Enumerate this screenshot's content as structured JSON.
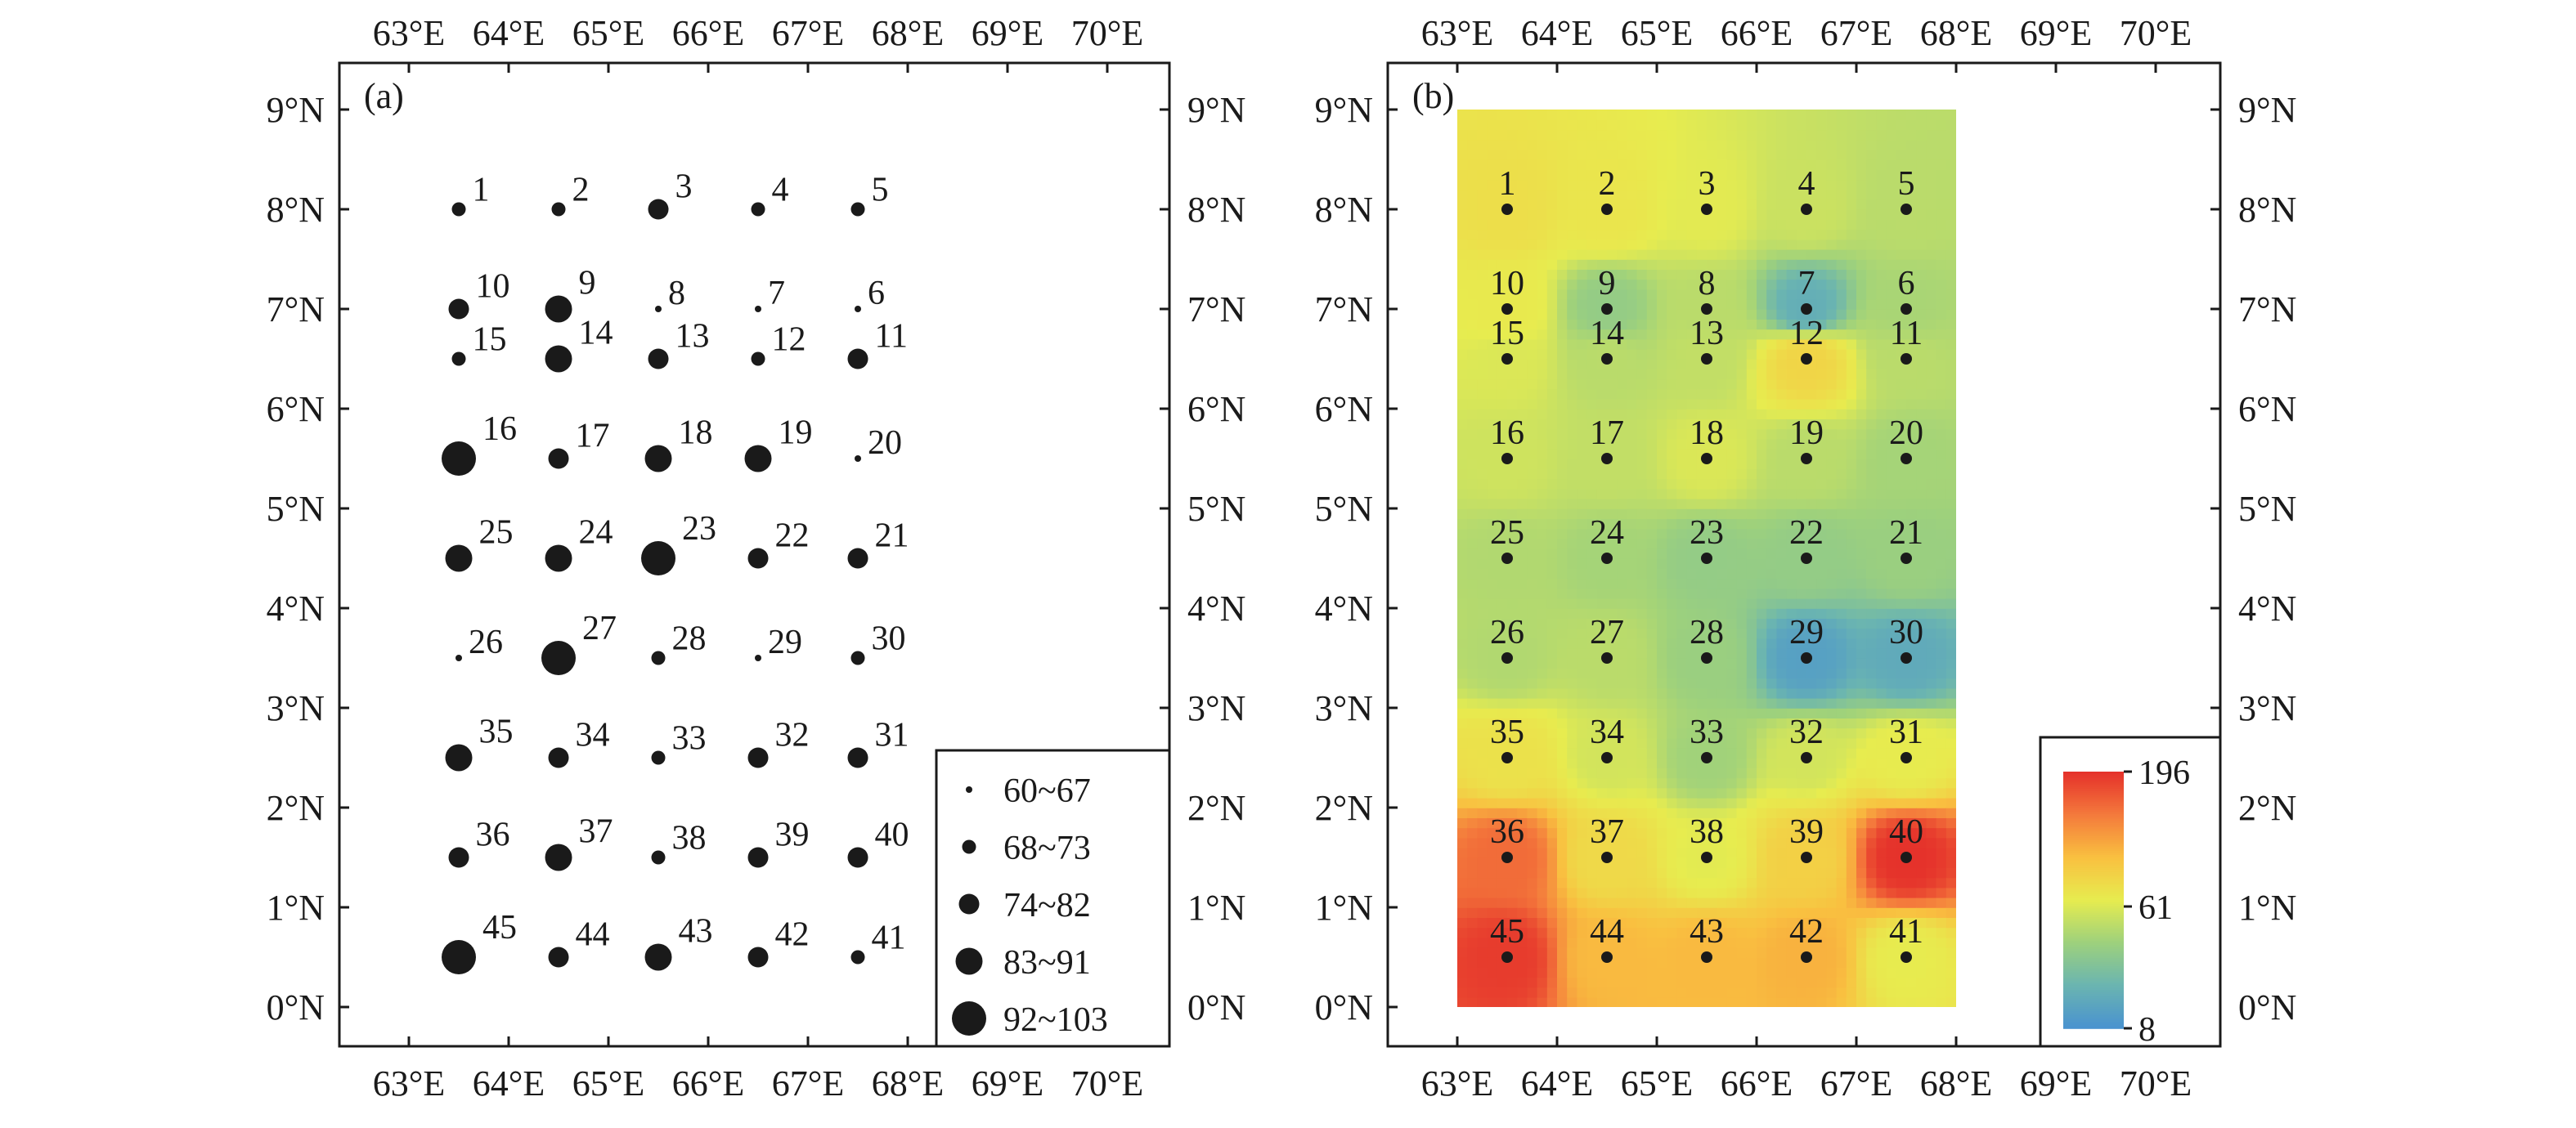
{
  "chart_data": [
    {
      "type": "scatter",
      "panel_label": "(a)",
      "subtype": "proportional-symbol map",
      "xlim": [
        62,
        70.5
      ],
      "ylim": [
        -0.8,
        9.5
      ],
      "x_ticks": [
        "63°E",
        "64°E",
        "65°E",
        "66°E",
        "67°E",
        "68°E",
        "69°E",
        "70°E"
      ],
      "y_ticks": [
        "0°N",
        "1°N",
        "2°N",
        "3°N",
        "4°N",
        "5°N",
        "6°N",
        "7°N",
        "8°N",
        "9°N"
      ],
      "legend_position": "bottom-right",
      "legend": [
        {
          "label": "60~67",
          "class": 0
        },
        {
          "label": "68~73",
          "class": 1
        },
        {
          "label": "74~82",
          "class": 2
        },
        {
          "label": "83~91",
          "class": 3
        },
        {
          "label": "92~103",
          "class": 4
        }
      ],
      "points": [
        {
          "id": "1",
          "lon": 63.5,
          "lat": 8.0,
          "class": 1
        },
        {
          "id": "2",
          "lon": 64.5,
          "lat": 8.0,
          "class": 1
        },
        {
          "id": "3",
          "lon": 65.5,
          "lat": 8.0,
          "class": 2
        },
        {
          "id": "4",
          "lon": 66.5,
          "lat": 8.0,
          "class": 1
        },
        {
          "id": "5",
          "lon": 67.5,
          "lat": 8.0,
          "class": 1
        },
        {
          "id": "10",
          "lon": 63.5,
          "lat": 7.0,
          "class": 2
        },
        {
          "id": "9",
          "lon": 64.5,
          "lat": 7.0,
          "class": 3
        },
        {
          "id": "8",
          "lon": 65.5,
          "lat": 7.0,
          "class": 0
        },
        {
          "id": "7",
          "lon": 66.5,
          "lat": 7.0,
          "class": 0
        },
        {
          "id": "6",
          "lon": 67.5,
          "lat": 7.0,
          "class": 0
        },
        {
          "id": "15",
          "lon": 63.5,
          "lat": 6.5,
          "class": 1
        },
        {
          "id": "14",
          "lon": 64.5,
          "lat": 6.5,
          "class": 3
        },
        {
          "id": "13",
          "lon": 65.5,
          "lat": 6.5,
          "class": 2
        },
        {
          "id": "12",
          "lon": 66.5,
          "lat": 6.5,
          "class": 1
        },
        {
          "id": "11",
          "lon": 67.5,
          "lat": 6.5,
          "class": 2
        },
        {
          "id": "16",
          "lon": 63.5,
          "lat": 5.5,
          "class": 4
        },
        {
          "id": "17",
          "lon": 64.5,
          "lat": 5.5,
          "class": 2
        },
        {
          "id": "18",
          "lon": 65.5,
          "lat": 5.5,
          "class": 3
        },
        {
          "id": "19",
          "lon": 66.5,
          "lat": 5.5,
          "class": 3
        },
        {
          "id": "20",
          "lon": 67.5,
          "lat": 5.5,
          "class": 0
        },
        {
          "id": "25",
          "lon": 63.5,
          "lat": 4.5,
          "class": 3
        },
        {
          "id": "24",
          "lon": 64.5,
          "lat": 4.5,
          "class": 3
        },
        {
          "id": "23",
          "lon": 65.5,
          "lat": 4.5,
          "class": 4
        },
        {
          "id": "22",
          "lon": 66.5,
          "lat": 4.5,
          "class": 2
        },
        {
          "id": "21",
          "lon": 67.5,
          "lat": 4.5,
          "class": 2
        },
        {
          "id": "26",
          "lon": 63.5,
          "lat": 3.5,
          "class": 0
        },
        {
          "id": "27",
          "lon": 64.5,
          "lat": 3.5,
          "class": 4
        },
        {
          "id": "28",
          "lon": 65.5,
          "lat": 3.5,
          "class": 1
        },
        {
          "id": "29",
          "lon": 66.5,
          "lat": 3.5,
          "class": 0
        },
        {
          "id": "30",
          "lon": 67.5,
          "lat": 3.5,
          "class": 1
        },
        {
          "id": "35",
          "lon": 63.5,
          "lat": 2.5,
          "class": 3
        },
        {
          "id": "34",
          "lon": 64.5,
          "lat": 2.5,
          "class": 2
        },
        {
          "id": "33",
          "lon": 65.5,
          "lat": 2.5,
          "class": 1
        },
        {
          "id": "32",
          "lon": 66.5,
          "lat": 2.5,
          "class": 2
        },
        {
          "id": "31",
          "lon": 67.5,
          "lat": 2.5,
          "class": 2
        },
        {
          "id": "36",
          "lon": 63.5,
          "lat": 1.5,
          "class": 2
        },
        {
          "id": "37",
          "lon": 64.5,
          "lat": 1.5,
          "class": 3
        },
        {
          "id": "38",
          "lon": 65.5,
          "lat": 1.5,
          "class": 1
        },
        {
          "id": "39",
          "lon": 66.5,
          "lat": 1.5,
          "class": 2
        },
        {
          "id": "40",
          "lon": 67.5,
          "lat": 1.5,
          "class": 2
        },
        {
          "id": "45",
          "lon": 63.5,
          "lat": 0.5,
          "class": 4
        },
        {
          "id": "44",
          "lon": 64.5,
          "lat": 0.5,
          "class": 2
        },
        {
          "id": "43",
          "lon": 65.5,
          "lat": 0.5,
          "class": 3
        },
        {
          "id": "42",
          "lon": 66.5,
          "lat": 0.5,
          "class": 2
        },
        {
          "id": "41",
          "lon": 67.5,
          "lat": 0.5,
          "class": 1
        }
      ]
    },
    {
      "type": "heatmap",
      "panel_label": "(b)",
      "xlim": [
        62,
        70.5
      ],
      "ylim": [
        -0.8,
        9.5
      ],
      "grid_extent": {
        "lon": [
          63,
          68
        ],
        "lat": [
          0,
          9
        ]
      },
      "x_ticks": [
        "63°E",
        "64°E",
        "65°E",
        "66°E",
        "67°E",
        "68°E",
        "69°E",
        "70°E"
      ],
      "y_ticks": [
        "0°N",
        "1°N",
        "2°N",
        "3°N",
        "4°N",
        "5°N",
        "6°N",
        "7°N",
        "8°N",
        "9°N"
      ],
      "colorbar": {
        "position": "bottom-right",
        "tick_labels": [
          "196",
          "61",
          "8"
        ],
        "range": [
          8,
          196
        ],
        "colors": [
          "#e5322b",
          "#f47a3c",
          "#f9c040",
          "#e7ec4f",
          "#9ed17c",
          "#6bb5b0",
          "#4a93cf"
        ]
      },
      "station_values": [
        {
          "id": "1",
          "lon": 63.5,
          "lat": 8.0,
          "value": 75
        },
        {
          "id": "2",
          "lon": 64.5,
          "lat": 8.0,
          "value": 68
        },
        {
          "id": "3",
          "lon": 65.5,
          "lat": 8.0,
          "value": 60
        },
        {
          "id": "4",
          "lon": 66.5,
          "lat": 8.0,
          "value": 54
        },
        {
          "id": "5",
          "lon": 67.5,
          "lat": 8.0,
          "value": 50
        },
        {
          "id": "10",
          "lon": 63.5,
          "lat": 7.0,
          "value": 64
        },
        {
          "id": "9",
          "lon": 64.5,
          "lat": 7.0,
          "value": 40
        },
        {
          "id": "8",
          "lon": 65.5,
          "lat": 7.0,
          "value": 50
        },
        {
          "id": "7",
          "lon": 66.5,
          "lat": 7.0,
          "value": 22
        },
        {
          "id": "6",
          "lon": 67.5,
          "lat": 7.0,
          "value": 46
        },
        {
          "id": "15",
          "lon": 63.5,
          "lat": 6.5,
          "value": 58
        },
        {
          "id": "14",
          "lon": 64.5,
          "lat": 6.5,
          "value": 50
        },
        {
          "id": "13",
          "lon": 65.5,
          "lat": 6.5,
          "value": 52
        },
        {
          "id": "12",
          "lon": 66.5,
          "lat": 6.5,
          "value": 85
        },
        {
          "id": "11",
          "lon": 67.5,
          "lat": 6.5,
          "value": 50
        },
        {
          "id": "16",
          "lon": 63.5,
          "lat": 5.5,
          "value": 55
        },
        {
          "id": "17",
          "lon": 64.5,
          "lat": 5.5,
          "value": 52
        },
        {
          "id": "18",
          "lon": 65.5,
          "lat": 5.5,
          "value": 58
        },
        {
          "id": "19",
          "lon": 66.5,
          "lat": 5.5,
          "value": 50
        },
        {
          "id": "20",
          "lon": 67.5,
          "lat": 5.5,
          "value": 45
        },
        {
          "id": "25",
          "lon": 63.5,
          "lat": 4.5,
          "value": 48
        },
        {
          "id": "24",
          "lon": 64.5,
          "lat": 4.5,
          "value": 45
        },
        {
          "id": "23",
          "lon": 65.5,
          "lat": 4.5,
          "value": 40
        },
        {
          "id": "22",
          "lon": 66.5,
          "lat": 4.5,
          "value": 40
        },
        {
          "id": "21",
          "lon": 67.5,
          "lat": 4.5,
          "value": 42
        },
        {
          "id": "26",
          "lon": 63.5,
          "lat": 3.5,
          "value": 48
        },
        {
          "id": "27",
          "lon": 64.5,
          "lat": 3.5,
          "value": 50
        },
        {
          "id": "28",
          "lon": 65.5,
          "lat": 3.5,
          "value": 42
        },
        {
          "id": "29",
          "lon": 66.5,
          "lat": 3.5,
          "value": 15
        },
        {
          "id": "30",
          "lon": 67.5,
          "lat": 3.5,
          "value": 20
        },
        {
          "id": "35",
          "lon": 63.5,
          "lat": 2.5,
          "value": 72
        },
        {
          "id": "34",
          "lon": 64.5,
          "lat": 2.5,
          "value": 56
        },
        {
          "id": "33",
          "lon": 65.5,
          "lat": 2.5,
          "value": 44
        },
        {
          "id": "32",
          "lon": 66.5,
          "lat": 2.5,
          "value": 56
        },
        {
          "id": "31",
          "lon": 67.5,
          "lat": 2.5,
          "value": 62
        },
        {
          "id": "36",
          "lon": 63.5,
          "lat": 1.5,
          "value": 160
        },
        {
          "id": "37",
          "lon": 64.5,
          "lat": 1.5,
          "value": 80
        },
        {
          "id": "38",
          "lon": 65.5,
          "lat": 1.5,
          "value": 60
        },
        {
          "id": "39",
          "lon": 66.5,
          "lat": 1.5,
          "value": 90
        },
        {
          "id": "40",
          "lon": 67.5,
          "lat": 1.5,
          "value": 196
        },
        {
          "id": "45",
          "lon": 63.5,
          "lat": 0.5,
          "value": 190
        },
        {
          "id": "44",
          "lon": 64.5,
          "lat": 0.5,
          "value": 110
        },
        {
          "id": "43",
          "lon": 65.5,
          "lat": 0.5,
          "value": 110
        },
        {
          "id": "42",
          "lon": 66.5,
          "lat": 0.5,
          "value": 115
        },
        {
          "id": "41",
          "lon": 67.5,
          "lat": 0.5,
          "value": 62
        }
      ]
    }
  ]
}
